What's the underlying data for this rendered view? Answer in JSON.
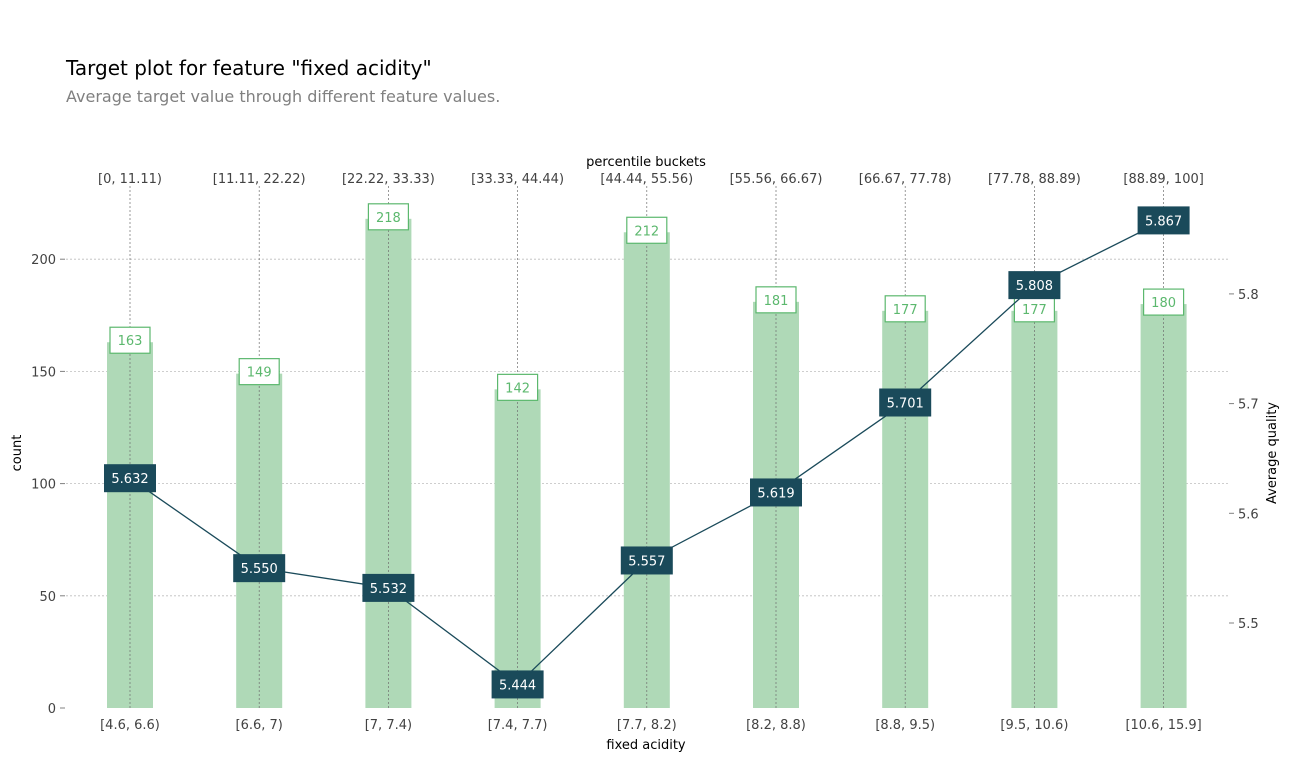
{
  "header": {
    "title": "Target plot for feature \"fixed acidity\"",
    "subtitle": "Average target value through different feature values."
  },
  "chart_data": {
    "type": "bar",
    "categories": [
      "[4.6, 6.6)",
      "[6.6, 7)",
      "[7, 7.4)",
      "[7.4, 7.7)",
      "[7.7, 8.2)",
      "[8.2, 8.8)",
      "[8.8, 9.5)",
      "[9.5, 10.6)",
      "[10.6, 15.9]"
    ],
    "percentile_buckets": [
      "[0, 11.11)",
      "[11.11, 22.22)",
      "[22.22, 33.33)",
      "[33.33, 44.44)",
      "[44.44, 55.56)",
      "[55.56, 66.67)",
      "[66.67, 77.78)",
      "[77.78, 88.89)",
      "[88.89, 100]"
    ],
    "series": [
      {
        "type": "bar",
        "values": [
          163,
          149,
          218,
          142,
          212,
          181,
          177,
          177,
          180
        ],
        "color": "#afd9b7",
        "label_color": "#5cb86e"
      },
      {
        "type": "line",
        "values": [
          5.632,
          5.55,
          5.532,
          5.444,
          5.557,
          5.619,
          5.701,
          5.808,
          5.867
        ],
        "color": "#1a4a5a"
      }
    ],
    "value_labels": [
      "5.632",
      "5.550",
      "5.532",
      "5.444",
      "5.557",
      "5.619",
      "5.701",
      "5.808",
      "5.867"
    ],
    "xlabel": "fixed acidity",
    "top_xlabel": "percentile buckets",
    "ylabel": "count",
    "y2label": "Average quality",
    "ylim": [
      0,
      230
    ],
    "yticks": [
      0,
      50,
      100,
      150,
      200
    ],
    "y2lim": [
      5.42,
      5.88
    ],
    "y2ticks": [
      "5.5",
      "5.6",
      "5.7",
      "5.8"
    ],
    "grid": true
  }
}
